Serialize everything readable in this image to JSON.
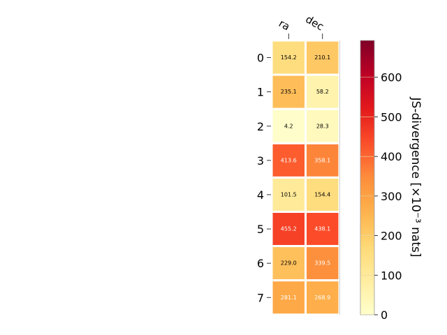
{
  "chart_data": {
    "type": "heatmap",
    "columns": [
      "ra",
      "dec"
    ],
    "rows": [
      "0",
      "1",
      "2",
      "3",
      "4",
      "5",
      "6",
      "7"
    ],
    "values": [
      [
        154.2,
        210.1
      ],
      [
        235.1,
        58.2
      ],
      [
        4.2,
        28.3
      ],
      [
        413.6,
        358.1
      ],
      [
        101.5,
        154.4
      ],
      [
        455.2,
        438.1
      ],
      [
        229.0,
        339.5
      ],
      [
        281.1,
        268.9
      ]
    ],
    "value_labels": [
      [
        "154.2",
        "210.1"
      ],
      [
        "235.1",
        "58.2"
      ],
      [
        "4.2",
        "28.3"
      ],
      [
        "413.6",
        "358.1"
      ],
      [
        "101.5",
        "154.4"
      ],
      [
        "455.2",
        "438.1"
      ],
      [
        "229.0",
        "339.5"
      ],
      [
        "281.1",
        "268.9"
      ]
    ],
    "colorbar": {
      "label": "JS-divergence [×10⁻³ nats]",
      "range": [
        0,
        693
      ],
      "ticks": [
        "0",
        "100",
        "200",
        "300",
        "400",
        "500",
        "600"
      ],
      "tick_values": [
        0,
        100,
        200,
        300,
        400,
        500,
        600
      ],
      "colormap": "YlOrRd"
    },
    "x_axis_position": "top",
    "grid": false
  }
}
